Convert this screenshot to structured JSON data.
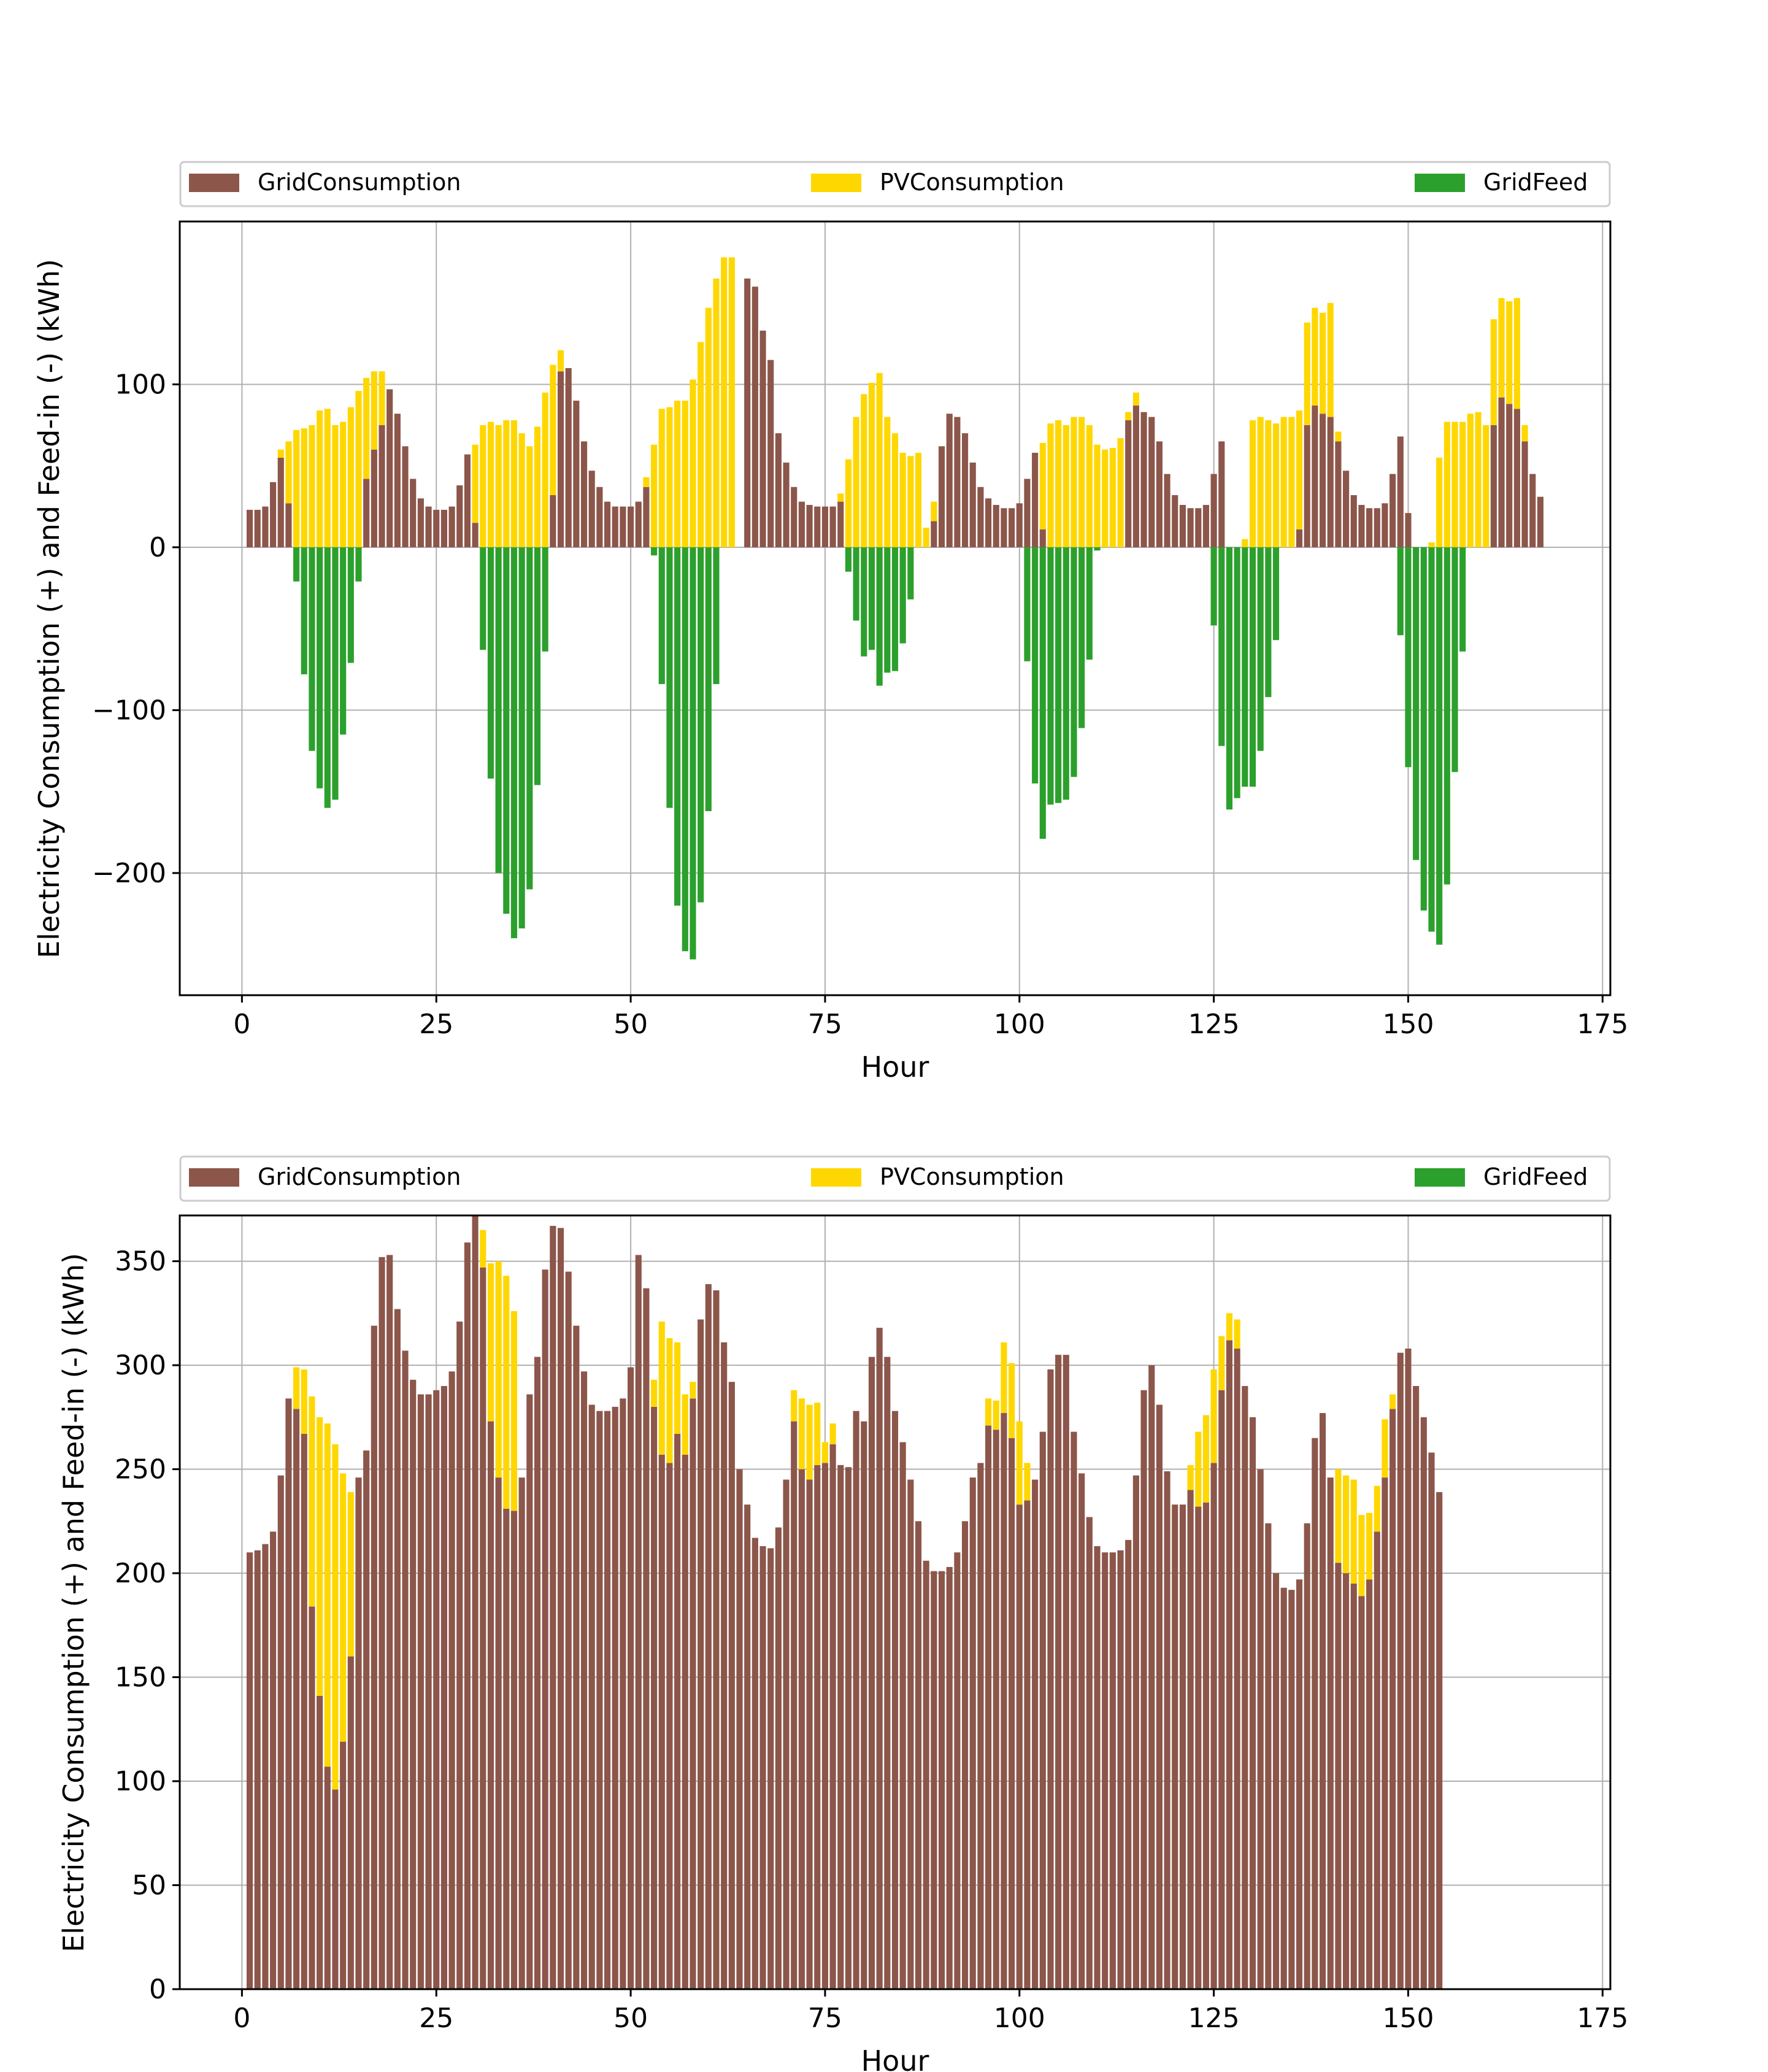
{
  "colors": {
    "GridConsumption": "#8c564b",
    "PVConsumption": "#ffd700",
    "GridFeed": "#2ca02c",
    "grid": "#b0b0b0",
    "frame": "#000000"
  },
  "chart_data": [
    {
      "type": "bar",
      "stacked": true,
      "title": "",
      "xlabel": "Hour",
      "ylabel": "Electricity Consumption (+) and Feed-in (-) (kWh)",
      "xlim": [
        -8,
        176
      ],
      "ylim": [
        -275,
        200
      ],
      "xticks": [
        0,
        25,
        50,
        75,
        100,
        125,
        150,
        175
      ],
      "xtick_labels": [
        "0",
        "25",
        "50",
        "75",
        "100",
        "125",
        "150",
        "175"
      ],
      "yticks": [
        -200,
        -100,
        0,
        100
      ],
      "ytick_labels": [
        "−200",
        "−100",
        "0",
        "100"
      ],
      "grid": true,
      "legend": {
        "placement": "top",
        "entries": [
          "GridConsumption",
          "PVConsumption",
          "GridFeed"
        ]
      },
      "x_start": 1,
      "series": [
        {
          "name": "GridConsumption",
          "values": [
            23,
            23,
            25,
            40,
            55,
            27,
            0,
            0,
            0,
            0,
            0,
            0,
            0,
            0,
            0,
            42,
            60,
            75,
            97,
            82,
            62,
            42,
            30,
            25,
            23,
            23,
            25,
            38,
            57,
            15,
            0,
            0,
            0,
            0,
            0,
            0,
            0,
            0,
            0,
            32,
            108,
            110,
            90,
            65,
            47,
            37,
            28,
            25,
            25,
            25,
            28,
            37,
            0,
            0,
            0,
            0,
            0,
            0,
            0,
            0,
            0,
            0,
            0,
            0,
            165,
            160,
            133,
            115,
            70,
            52,
            37,
            28,
            26,
            25,
            25,
            25,
            28,
            0,
            0,
            0,
            0,
            0,
            0,
            0,
            0,
            0,
            0,
            0,
            16,
            62,
            82,
            80,
            70,
            52,
            37,
            30,
            26,
            24,
            24,
            27,
            42,
            58,
            11,
            0,
            0,
            0,
            0,
            0,
            0,
            0,
            0,
            0,
            0,
            78,
            87,
            83,
            80,
            65,
            45,
            32,
            26,
            24,
            24,
            26,
            45,
            65,
            0,
            0,
            0,
            0,
            0,
            0,
            0,
            0,
            0,
            11,
            75,
            87,
            82,
            80,
            65,
            47,
            32,
            26,
            24,
            24,
            27,
            45,
            68,
            21,
            0,
            0,
            0,
            0,
            0,
            0,
            0,
            0,
            0,
            0,
            75,
            92,
            88,
            85,
            65,
            45,
            31
          ]
        },
        {
          "name": "PVConsumption",
          "values": [
            0,
            0,
            0,
            0,
            5,
            38,
            72,
            73,
            75,
            84,
            85,
            75,
            77,
            86,
            96,
            62,
            48,
            33,
            0,
            0,
            0,
            0,
            0,
            0,
            0,
            0,
            0,
            0,
            0,
            48,
            75,
            77,
            75,
            78,
            78,
            70,
            62,
            74,
            95,
            80,
            13,
            0,
            0,
            0,
            0,
            0,
            0,
            0,
            0,
            0,
            0,
            6,
            63,
            85,
            86,
            90,
            90,
            103,
            126,
            147,
            165,
            178,
            178,
            0,
            0,
            0,
            0,
            0,
            0,
            0,
            0,
            0,
            0,
            0,
            0,
            0,
            5,
            54,
            80,
            94,
            101,
            107,
            80,
            70,
            58,
            56,
            58,
            12,
            12,
            0,
            0,
            0,
            0,
            0,
            0,
            0,
            0,
            0,
            0,
            0,
            0,
            0,
            53,
            76,
            78,
            75,
            80,
            80,
            75,
            63,
            60,
            61,
            67,
            5,
            8,
            0,
            0,
            0,
            0,
            0,
            0,
            0,
            0,
            0,
            0,
            0,
            0,
            0,
            5,
            78,
            80,
            78,
            76,
            80,
            80,
            73,
            63,
            60,
            62,
            70,
            6,
            0,
            0,
            0,
            0,
            0,
            0,
            0,
            0,
            0,
            0,
            0,
            3,
            55,
            77,
            77,
            77,
            82,
            83,
            75,
            65,
            61,
            63,
            68,
            10,
            0,
            0,
            0,
            0,
            0,
            0,
            0
          ]
        },
        {
          "name": "GridFeed",
          "values": [
            0,
            0,
            0,
            0,
            0,
            0,
            -21,
            -78,
            -125,
            -148,
            -160,
            -155,
            -115,
            -71,
            -21,
            0,
            0,
            0,
            0,
            0,
            0,
            0,
            0,
            0,
            0,
            0,
            0,
            0,
            0,
            0,
            -63,
            -142,
            -200,
            -225,
            -240,
            -234,
            -210,
            -146,
            -64,
            0,
            0,
            0,
            0,
            0,
            0,
            0,
            0,
            0,
            0,
            0,
            0,
            0,
            -5,
            -84,
            -160,
            -220,
            -248,
            -253,
            -218,
            -162,
            -84,
            0,
            0,
            0,
            0,
            0,
            0,
            0,
            0,
            0,
            0,
            0,
            0,
            0,
            0,
            0,
            0,
            -15,
            -45,
            -67,
            -63,
            -85,
            -77,
            -76,
            -59,
            -32,
            0,
            0,
            0,
            0,
            0,
            0,
            0,
            0,
            0,
            0,
            0,
            0,
            0,
            0,
            -70,
            -145,
            -179,
            -158,
            -157,
            -155,
            -141,
            -111,
            -69,
            -2,
            0,
            0,
            0,
            0,
            0,
            0,
            0,
            0,
            0,
            0,
            0,
            0,
            0,
            0,
            -48,
            -122,
            -161,
            -154,
            -147,
            -147,
            -125,
            -92,
            -57,
            0,
            0,
            0,
            0,
            0,
            0,
            0,
            0,
            0,
            0,
            0,
            0,
            0,
            0,
            0,
            -54,
            -135,
            -192,
            -223,
            -236,
            -244,
            -207,
            -138,
            -64,
            0,
            0,
            0,
            0,
            0,
            0,
            0,
            0
          ]
        }
      ]
    },
    {
      "type": "bar",
      "stacked": true,
      "title": "",
      "xlabel": "Hour",
      "ylabel": "Electricity Consumption (+) and Feed-in (-) (kWh)",
      "xlim": [
        -8,
        176
      ],
      "ylim": [
        0,
        372
      ],
      "xticks": [
        0,
        25,
        50,
        75,
        100,
        125,
        150,
        175
      ],
      "xtick_labels": [
        "0",
        "25",
        "50",
        "75",
        "100",
        "125",
        "150",
        "175"
      ],
      "yticks": [
        0,
        50,
        100,
        150,
        200,
        250,
        300,
        350
      ],
      "ytick_labels": [
        "0",
        "50",
        "100",
        "150",
        "200",
        "250",
        "300",
        "350"
      ],
      "grid": true,
      "legend": {
        "placement": "top",
        "entries": [
          "GridConsumption",
          "PVConsumption",
          "GridFeed"
        ]
      },
      "x_start": 1,
      "series": [
        {
          "name": "GridConsumption",
          "values": [
            210,
            211,
            214,
            220,
            247,
            284,
            279,
            267,
            184,
            141,
            107,
            96,
            119,
            160,
            246,
            259,
            319,
            352,
            353,
            327,
            307,
            293,
            286,
            286,
            288,
            290,
            297,
            321,
            359,
            372,
            347,
            273,
            246,
            231,
            230,
            246,
            286,
            304,
            346,
            367,
            366,
            345,
            319,
            297,
            281,
            278,
            278,
            280,
            284,
            299,
            353,
            337,
            280,
            257,
            253,
            267,
            257,
            284,
            322,
            339,
            336,
            311,
            292,
            250,
            233,
            217,
            213,
            212,
            222,
            245,
            273,
            250,
            245,
            252,
            253,
            262,
            252,
            251,
            278,
            273,
            304,
            318,
            304,
            278,
            263,
            245,
            225,
            206,
            201,
            201,
            203,
            210,
            225,
            246,
            253,
            271,
            269,
            277,
            265,
            233,
            235,
            245,
            268,
            298,
            305,
            305,
            268,
            248,
            227,
            213,
            210,
            210,
            211,
            216,
            247,
            288,
            300,
            281,
            249,
            233,
            233,
            240,
            232,
            234,
            253,
            288,
            312,
            308,
            290,
            275,
            250,
            224,
            200,
            193,
            192,
            197,
            224,
            265,
            277,
            246,
            205,
            200,
            195,
            189,
            197,
            220,
            246,
            279,
            306,
            308,
            290,
            275,
            258,
            239
          ]
        },
        {
          "name": "PVConsumption",
          "values": [
            0,
            0,
            0,
            0,
            0,
            0,
            20,
            31,
            101,
            134,
            165,
            166,
            129,
            79,
            0,
            0,
            0,
            0,
            0,
            0,
            0,
            0,
            0,
            0,
            0,
            0,
            0,
            0,
            0,
            0,
            18,
            76,
            104,
            112,
            96,
            0,
            0,
            0,
            0,
            0,
            0,
            0,
            0,
            0,
            0,
            0,
            0,
            0,
            0,
            0,
            0,
            0,
            13,
            64,
            60,
            44,
            29,
            8,
            0,
            0,
            0,
            0,
            0,
            0,
            0,
            0,
            0,
            0,
            0,
            0,
            15,
            34,
            36,
            30,
            10,
            10,
            0,
            0,
            0,
            0,
            0,
            0,
            0,
            0,
            0,
            0,
            0,
            0,
            0,
            0,
            0,
            0,
            0,
            0,
            0,
            13,
            14,
            34,
            36,
            40,
            18,
            0,
            0,
            0,
            0,
            0,
            0,
            0,
            0,
            0,
            0,
            0,
            0,
            0,
            0,
            0,
            0,
            0,
            0,
            0,
            0,
            12,
            36,
            42,
            45,
            26,
            13,
            14,
            0,
            0,
            0,
            0,
            0,
            0,
            0,
            0,
            0,
            0,
            0,
            0,
            45,
            47,
            50,
            39,
            32,
            22,
            28,
            7,
            0,
            0,
            0,
            0,
            0,
            0,
            0
          ]
        },
        {
          "name": "GridFeed",
          "values": [
            0,
            0,
            0,
            0,
            0,
            0,
            0,
            0,
            0,
            0,
            0,
            0,
            0,
            0,
            0,
            0,
            0,
            0,
            0,
            0,
            0,
            0,
            0,
            0,
            0,
            0,
            0,
            0,
            0,
            0,
            0,
            0,
            0,
            0,
            0,
            0,
            0,
            0,
            0,
            0,
            0,
            0,
            0,
            0,
            0,
            0,
            0,
            0,
            0,
            0,
            0,
            0,
            0,
            0,
            0,
            0,
            0,
            0,
            0,
            0,
            0,
            0,
            0,
            0,
            0,
            0,
            0,
            0,
            0,
            0,
            0,
            0,
            0,
            0,
            0,
            0,
            0,
            0,
            0,
            0,
            0,
            0,
            0,
            0,
            0,
            0,
            0,
            0,
            0,
            0,
            0,
            0,
            0,
            0,
            0,
            0,
            0,
            0,
            0,
            0,
            0,
            0,
            0,
            0,
            0,
            0,
            0,
            0,
            0,
            0,
            0,
            0,
            0,
            0,
            0,
            0,
            0,
            0,
            0,
            0,
            0,
            0,
            0,
            0,
            0,
            0,
            0,
            0,
            0,
            0,
            0,
            0,
            0,
            0,
            0,
            0,
            0,
            0,
            0,
            0,
            0,
            0,
            0,
            0,
            0,
            0,
            0,
            0,
            0,
            0,
            0,
            0,
            0,
            0,
            0,
            0,
            0,
            0,
            0,
            0,
            0,
            0,
            0,
            0,
            0,
            0,
            0
          ]
        }
      ]
    }
  ]
}
